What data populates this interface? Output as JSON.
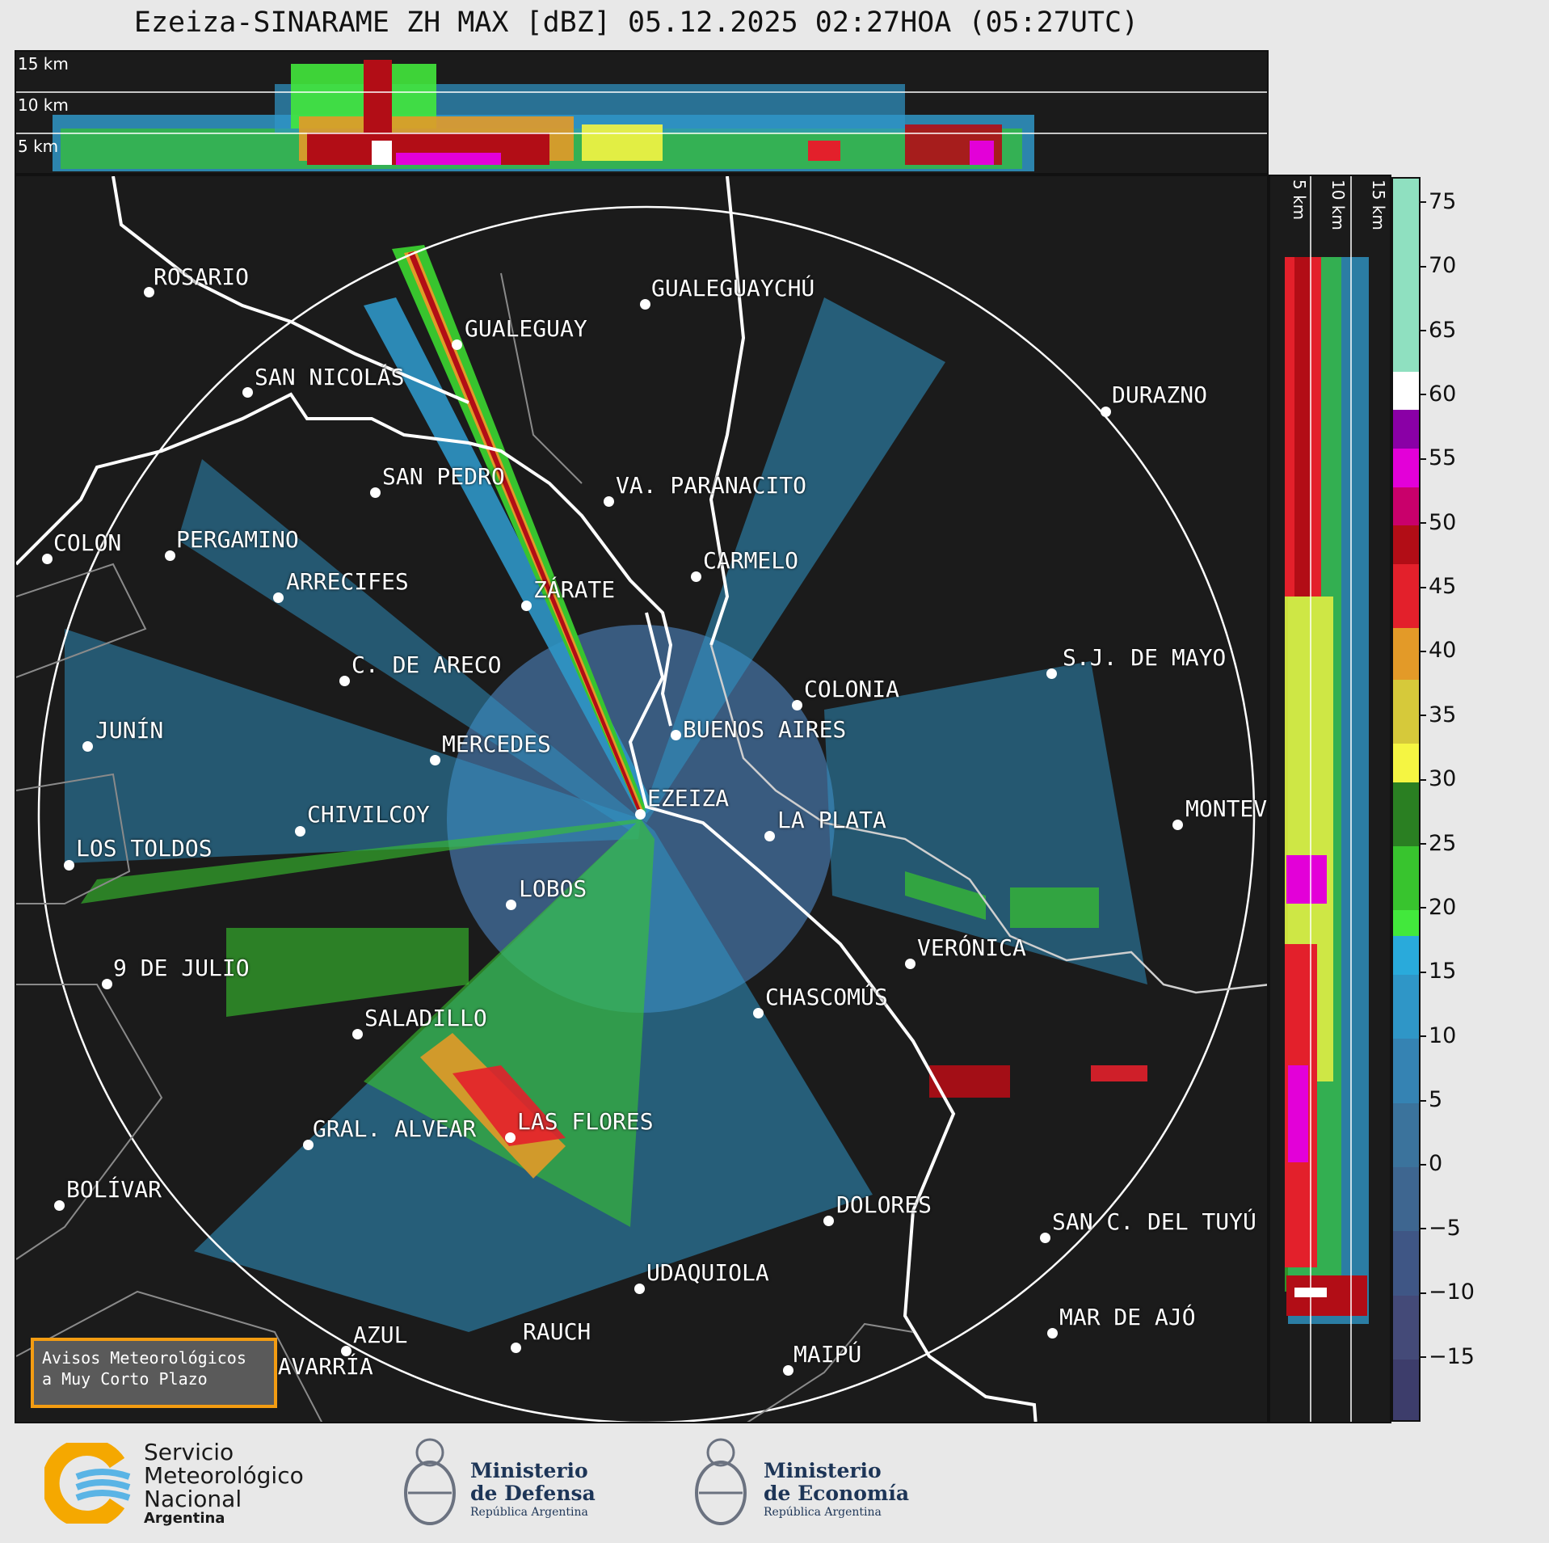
{
  "title": "Ezeiza-SINARAME ZH MAX [dBZ] 05.12.2025 02:27HOA (05:27UTC)",
  "altitude_labels": {
    "top": [
      "15 km",
      "10 km",
      "5 km"
    ],
    "side": [
      "5 km",
      "10 km",
      "15 km"
    ]
  },
  "cities": [
    {
      "name": "ROSARIO"
    },
    {
      "name": "GUALEGUAYCHÚ"
    },
    {
      "name": "GUALEGUAY"
    },
    {
      "name": "SAN NICOLÁS"
    },
    {
      "name": "DURAZNO"
    },
    {
      "name": "SAN PEDRO"
    },
    {
      "name": "VA. PARANACITO"
    },
    {
      "name": "COLON"
    },
    {
      "name": "PERGAMINO"
    },
    {
      "name": "CARMELO"
    },
    {
      "name": "ARRECIFES"
    },
    {
      "name": "ZÁRATE"
    },
    {
      "name": "S.J. DE MAYO"
    },
    {
      "name": "C. DE ARECO"
    },
    {
      "name": "COLONIA"
    },
    {
      "name": "JUNÍN"
    },
    {
      "name": "BUENOS AIRES"
    },
    {
      "name": "MERCEDES"
    },
    {
      "name": "EZEIZA"
    },
    {
      "name": "MONTEVIDEO"
    },
    {
      "name": "CHIVILCOY"
    },
    {
      "name": "LA PLATA"
    },
    {
      "name": "LOS TOLDOS"
    },
    {
      "name": "LOBOS"
    },
    {
      "name": "VERÓNICA"
    },
    {
      "name": "9 DE JULIO"
    },
    {
      "name": "CHASCOMÚS"
    },
    {
      "name": "SALADILLO"
    },
    {
      "name": "GRAL. ALVEAR"
    },
    {
      "name": "LAS FLORES"
    },
    {
      "name": "BOLÍVAR"
    },
    {
      "name": "DOLORES"
    },
    {
      "name": "SAN C. DEL TUYÚ"
    },
    {
      "name": "UDAQUIOLA"
    },
    {
      "name": "MAR DE AJÓ"
    },
    {
      "name": "RAUCH"
    },
    {
      "name": "AZUL"
    },
    {
      "name": "MAIPÚ"
    },
    {
      "name": "OLAVARRÍA"
    }
  ],
  "colorbar": {
    "unit": "dBZ",
    "ticks": [
      "75",
      "70",
      "65",
      "60",
      "55",
      "50",
      "45",
      "40",
      "35",
      "30",
      "25",
      "20",
      "15",
      "10",
      "5",
      "0",
      "−5",
      "−10",
      "−15"
    ],
    "range": [
      -20,
      77
    ],
    "colors": [
      {
        "from": -20,
        "to": -15,
        "color": "#3d3d6b"
      },
      {
        "from": -15,
        "to": -10,
        "color": "#444a78"
      },
      {
        "from": -10,
        "to": -5,
        "color": "#3f5685"
      },
      {
        "from": -5,
        "to": 0,
        "color": "#3e6690"
      },
      {
        "from": 0,
        "to": 5,
        "color": "#3b739c"
      },
      {
        "from": 5,
        "to": 10,
        "color": "#3583b3"
      },
      {
        "from": 10,
        "to": 15,
        "color": "#2f96c7"
      },
      {
        "from": 15,
        "to": 18,
        "color": "#29aadb"
      },
      {
        "from": 18,
        "to": 20,
        "color": "#42e83c"
      },
      {
        "from": 20,
        "to": 25,
        "color": "#38c42e"
      },
      {
        "from": 25,
        "to": 30,
        "color": "#2a7f22"
      },
      {
        "from": 30,
        "to": 33,
        "color": "#f5f542"
      },
      {
        "from": 33,
        "to": 38,
        "color": "#d6c93a"
      },
      {
        "from": 38,
        "to": 42,
        "color": "#e39a28"
      },
      {
        "from": 42,
        "to": 47,
        "color": "#e3202b"
      },
      {
        "from": 47,
        "to": 50,
        "color": "#b20d16"
      },
      {
        "from": 50,
        "to": 53,
        "color": "#c9006b"
      },
      {
        "from": 53,
        "to": 56,
        "color": "#e300d8"
      },
      {
        "from": 56,
        "to": 59,
        "color": "#8a00a6"
      },
      {
        "from": 59,
        "to": 62,
        "color": "#ffffff"
      },
      {
        "from": 62,
        "to": 77,
        "color": "#8fe0c0"
      }
    ]
  },
  "avisos": {
    "line1": "Avisos Meteorológicos",
    "line2": "a Muy Corto Plazo"
  },
  "logos": {
    "smn": {
      "line1": "Servicio",
      "line2": "Meteorológico",
      "line3": "Nacional",
      "line4": "Argentina"
    },
    "defensa": {
      "line1": "Ministerio",
      "line2": "de Defensa",
      "line3": "República Argentina"
    },
    "economia": {
      "line1": "Ministerio",
      "line2": "de Economía",
      "line3": "República Argentina"
    }
  }
}
